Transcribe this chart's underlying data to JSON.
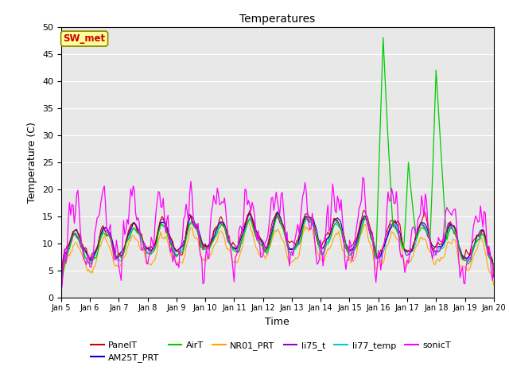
{
  "title": "Temperatures",
  "xlabel": "Time",
  "ylabel": "Temperature (C)",
  "ylim": [
    0,
    50
  ],
  "xlim": [
    0,
    360
  ],
  "yticks": [
    0,
    5,
    10,
    15,
    20,
    25,
    30,
    35,
    40,
    45,
    50
  ],
  "xtick_labels": [
    "Jan 5",
    "Jan 6",
    "Jan 7",
    "Jan 8",
    "Jan 9",
    "Jan 10",
    "Jan 11",
    "Jan 12",
    "Jan 13",
    "Jan 14",
    "Jan 15",
    "Jan 16",
    "Jan 17",
    "Jan 18",
    "Jan 19",
    "Jan 20"
  ],
  "xtick_positions": [
    0,
    24,
    48,
    72,
    96,
    120,
    144,
    168,
    192,
    216,
    240,
    264,
    288,
    312,
    336,
    360
  ],
  "bg_color": "#e8e8e8",
  "series_colors": {
    "PanelT": "#cc0000",
    "AM25T_PRT": "#0000cc",
    "AirT": "#00cc00",
    "NR01_PRT": "#ffa500",
    "li75_t": "#9900cc",
    "li77_temp": "#00cccc",
    "sonicT": "#ff00ff"
  },
  "annotation_text": "SW_met",
  "annotation_color": "#cc0000",
  "annotation_bg": "#ffff99",
  "annotation_border": "#888800",
  "figsize": [
    6.4,
    4.8
  ],
  "dpi": 100
}
